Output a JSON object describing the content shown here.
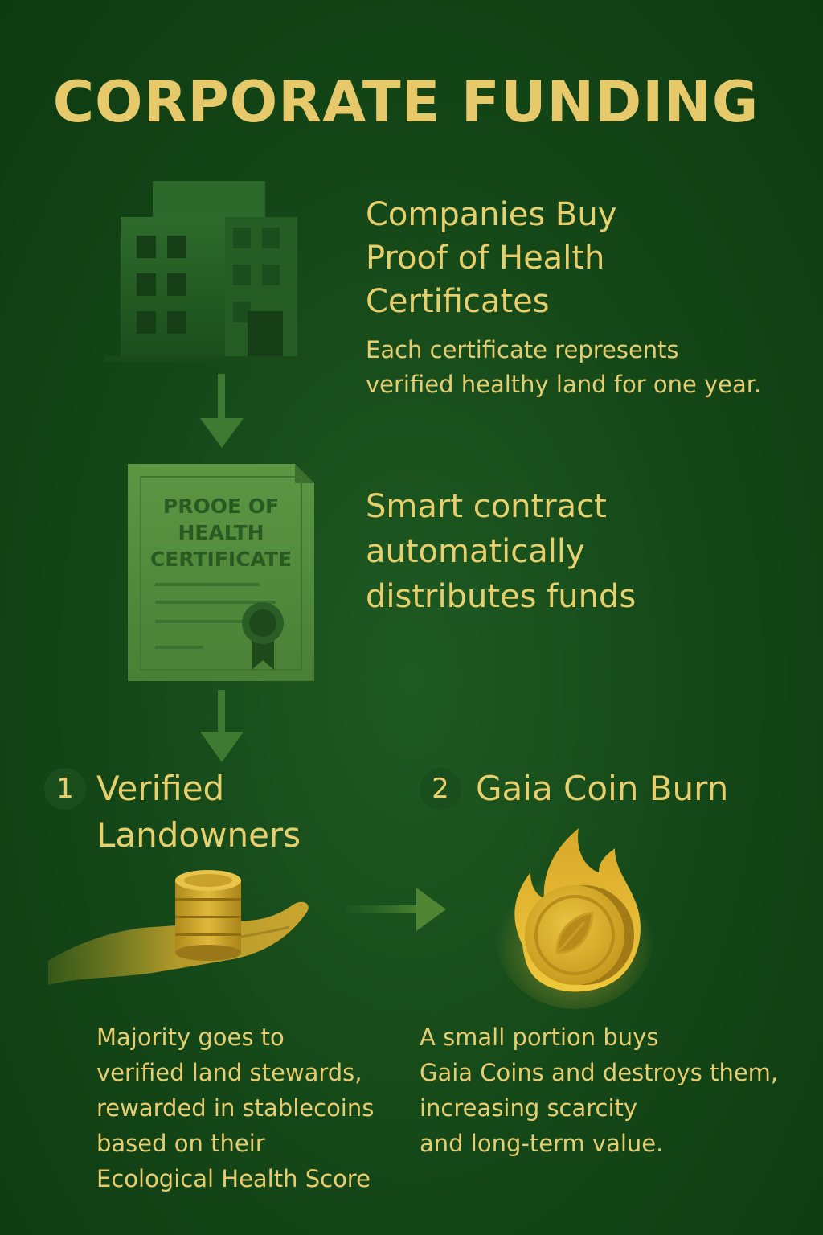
{
  "title": "CORPORATE FUNDING",
  "step_companies": {
    "heading_lines": [
      "Companies Buy",
      "Proof of Health",
      "Certificates"
    ],
    "description_lines": [
      "Each certificate represents",
      "verified healthy land for one year."
    ]
  },
  "step_contract": {
    "heading_lines": [
      "Smart contract",
      "automatically",
      "distributes funds"
    ]
  },
  "certificate": {
    "heading_lines": [
      "PROOE OF",
      "HEALTH",
      "CERTIFICATE"
    ]
  },
  "landowners": {
    "number": "1",
    "title_lines": [
      "Verified",
      "Landowners"
    ],
    "description_lines": [
      "Majority goes to",
      "verified land stewards,",
      "rewarded in stablecoins",
      "based on their",
      "Ecological Health Score"
    ]
  },
  "burn": {
    "number": "2",
    "title": "Gaia Coin Burn",
    "description_lines": [
      "A small portion buys",
      "Gaia Coins and destroys them,",
      "increasing scarcity",
      "and long-term value."
    ]
  },
  "colors": {
    "background": "#144617",
    "text_gold": "#e8cf6e",
    "certificate_green": "#4f8a3a",
    "coin_gold": "#d9b52a"
  }
}
